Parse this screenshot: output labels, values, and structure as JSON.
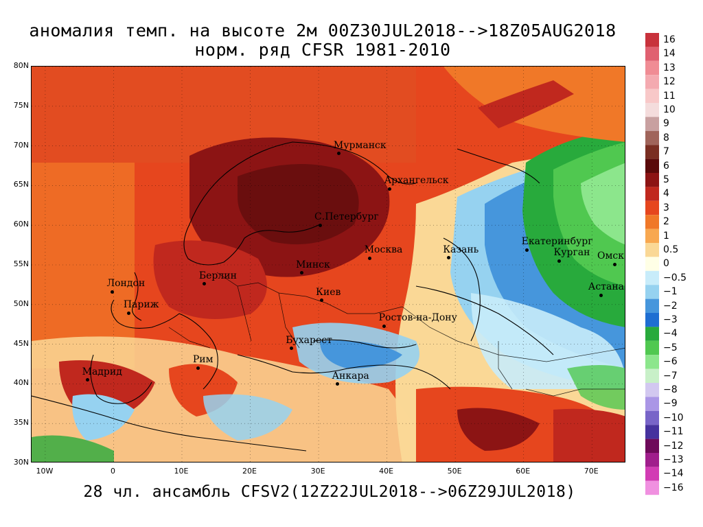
{
  "title_line1": "аномалия темп. на высоте 2м 00Z30JUL2018-->18Z05AUG2018",
  "title_line2": "норм. ряд CFSR 1981-2010",
  "caption": "28 чл. ансамбль CFSV2(12Z22JUL2018-->06Z29JUL2018)",
  "map": {
    "lon_range": [
      -12,
      75
    ],
    "lat_range": [
      30,
      80
    ],
    "lat_labels": [
      "80N",
      "75N",
      "70N",
      "65N",
      "60N",
      "55N",
      "50N",
      "45N",
      "40N",
      "35N",
      "30N"
    ],
    "lat_values": [
      80,
      75,
      70,
      65,
      60,
      55,
      50,
      45,
      40,
      35,
      30
    ],
    "lon_labels": [
      "10W",
      "0",
      "10E",
      "20E",
      "30E",
      "40E",
      "50E",
      "60E",
      "70E"
    ],
    "lon_values": [
      -10,
      0,
      10,
      20,
      30,
      40,
      50,
      60,
      70
    ],
    "cities": [
      {
        "name": "Мурманск",
        "lon": 33.1,
        "lat": 68.97
      },
      {
        "name": "Архангельск",
        "lon": 40.5,
        "lat": 64.5
      },
      {
        "name": "С.Петербург",
        "lon": 30.3,
        "lat": 59.9
      },
      {
        "name": "Москва",
        "lon": 37.6,
        "lat": 55.75
      },
      {
        "name": "Казань",
        "lon": 49.1,
        "lat": 55.8
      },
      {
        "name": "Екатеринбург",
        "lon": 60.6,
        "lat": 56.8
      },
      {
        "name": "Курган",
        "lon": 65.3,
        "lat": 55.4
      },
      {
        "name": "Омск",
        "lon": 73.4,
        "lat": 55.0
      },
      {
        "name": "Астана",
        "lon": 71.4,
        "lat": 51.1
      },
      {
        "name": "Минск",
        "lon": 27.6,
        "lat": 53.9
      },
      {
        "name": "Берлин",
        "lon": 13.4,
        "lat": 52.5
      },
      {
        "name": "Лондон",
        "lon": -0.1,
        "lat": 51.5
      },
      {
        "name": "Париж",
        "lon": 2.35,
        "lat": 48.85
      },
      {
        "name": "Киев",
        "lon": 30.5,
        "lat": 50.45
      },
      {
        "name": "Ростов-на-Дону",
        "lon": 39.7,
        "lat": 47.2
      },
      {
        "name": "Бухарест",
        "lon": 26.1,
        "lat": 44.4
      },
      {
        "name": "Рим",
        "lon": 12.5,
        "lat": 41.9
      },
      {
        "name": "Мадрид",
        "lon": -3.7,
        "lat": 40.4
      },
      {
        "name": "Анкара",
        "lon": 32.85,
        "lat": 39.9
      }
    ]
  },
  "colorbar": {
    "labels": [
      "16",
      "14",
      "13",
      "12",
      "11",
      "10",
      "9",
      "8",
      "7",
      "6",
      "5",
      "4",
      "3",
      "2",
      "1",
      "0.5",
      "0",
      "−0.5",
      "−1",
      "−2",
      "−3",
      "−4",
      "−5",
      "−6",
      "−7",
      "−8",
      "−9",
      "−10",
      "−11",
      "−12",
      "−13",
      "−14",
      "−16"
    ],
    "colors": [
      "#c8323c",
      "#e06070",
      "#f08c94",
      "#f4aab0",
      "#f8c8c8",
      "#f4dcdc",
      "#c8a0a0",
      "#a0645a",
      "#7a2e22",
      "#5a0a0a",
      "#8c1414",
      "#c0281e",
      "#e6461e",
      "#f07828",
      "#f8a850",
      "#fad896",
      "#ffffe6",
      "#c8ecfa",
      "#96d2f0",
      "#4696dc",
      "#1e6ed2",
      "#28aa3c",
      "#50c850",
      "#8ce68c",
      "#c8f0c8",
      "#d2c8f0",
      "#aa96e6",
      "#7864c8",
      "#46329e",
      "#6e0a5a",
      "#a01e8c",
      "#d23cb4",
      "#f090e0"
    ]
  }
}
